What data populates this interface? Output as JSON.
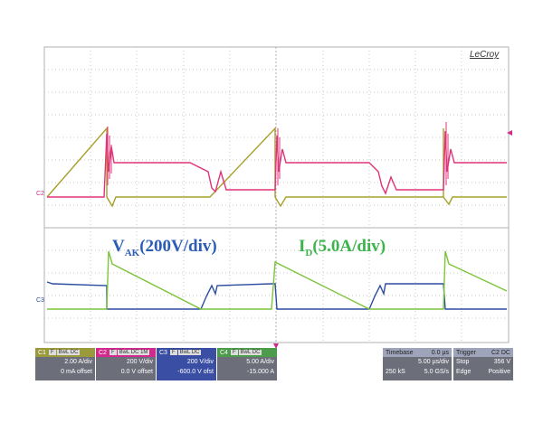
{
  "logo": "LeCroy",
  "annotations": {
    "vak_main": "V",
    "vak_sub": "AK",
    "vak_rest": "(200V/div)",
    "id_main": "I",
    "id_sub": "D",
    "id_rest": "(5.0A/div)"
  },
  "channel_markers": {
    "c2": "C2",
    "c3": "C3"
  },
  "channels": [
    {
      "name": "C1",
      "tag1": "F",
      "tag2": "BwL DC",
      "scale": "2.00 A/div",
      "offset": "0 mA offset",
      "color": "#9a9a3c"
    },
    {
      "name": "C2",
      "tag1": "F",
      "tag2": "BwL DC 1M",
      "scale": "200 V/div",
      "offset": "0.0 V offset",
      "color": "#d12a8c"
    },
    {
      "name": "C3",
      "tag1": "F",
      "tag2": "BwL DC",
      "scale": "200 V/div",
      "offset": "-600.0 V ofst",
      "color": "#3a4fa4"
    },
    {
      "name": "C4",
      "tag1": "F",
      "tag2": "BwL DC",
      "scale": "5.00 A/div",
      "offset": "-15.000 A",
      "color": "#4c9c4c"
    }
  ],
  "timebase": {
    "label": "Timebase",
    "value": "0.0 µs",
    "scale": "5.00 µs/div",
    "samples": "250 kS",
    "rate": "5.0 GS/s"
  },
  "trigger": {
    "label": "Trigger",
    "channel": "C2 DC",
    "mode": "Stop",
    "level": "356 V",
    "type": "Edge",
    "slope": "Positive"
  },
  "colors": {
    "c1_trace": "#a8a02a",
    "c2_trace": "#e0337a",
    "c3_trace": "#2d4da0",
    "c4_trace": "#7cc43a",
    "grid": "#bdbdbd"
  }
}
